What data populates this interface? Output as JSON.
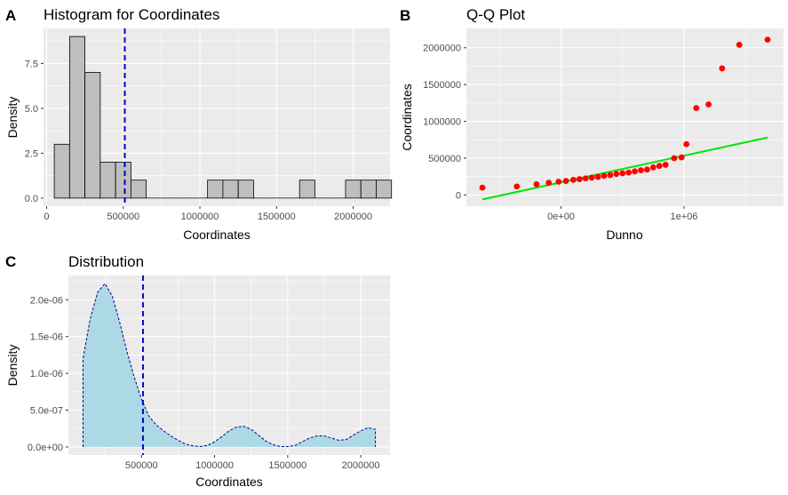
{
  "panels": {
    "A": {
      "label": "A",
      "title": "Histogram for Coordinates",
      "xlabel": "Coordinates",
      "ylabel": "Density",
      "x_ticks": [
        "0",
        "500000",
        "1000000",
        "1500000",
        "2000000"
      ],
      "y_ticks": [
        "0.0",
        "2.5",
        "5.0",
        "7.5"
      ]
    },
    "B": {
      "label": "B",
      "title": "Q-Q Plot",
      "xlabel": "Dunno",
      "ylabel": "Coordinates",
      "x_ticks": [
        "0e+00",
        "1e+06"
      ],
      "y_ticks": [
        "0",
        "500000",
        "1000000",
        "1500000",
        "2000000"
      ]
    },
    "C": {
      "label": "C",
      "title": "Distribution",
      "xlabel": "Coordinates",
      "ylabel": "Density",
      "x_ticks": [
        "500000",
        "1000000",
        "1500000",
        "2000000"
      ],
      "y_ticks": [
        "0.0e+00",
        "5.0e-07",
        "1.0e-06",
        "1.5e-06",
        "2.0e-06"
      ]
    }
  },
  "chart_data": [
    {
      "type": "bar",
      "panel": "A",
      "title": "Histogram for Coordinates",
      "xlabel": "Coordinates",
      "ylabel": "Density",
      "bin_width": 100000,
      "bin_start": 50000,
      "values": [
        3,
        9,
        7,
        2,
        2,
        1,
        0,
        0,
        0,
        0,
        1,
        1,
        1,
        0,
        0,
        0,
        1,
        0,
        0,
        1,
        1,
        1
      ],
      "vline": 510000,
      "xlim": [
        -20000,
        2240000
      ],
      "ylim": [
        -0.45,
        9.45
      ],
      "colors": {
        "fill": "#bebebe",
        "edge": "#000000",
        "vline": "#0000cd"
      }
    },
    {
      "type": "scatter",
      "panel": "B",
      "title": "Q-Q Plot",
      "xlabel": "Dunno",
      "ylabel": "Coordinates",
      "x": [
        -640000,
        -360000,
        -200000,
        -100000,
        -20000,
        40000,
        100000,
        150000,
        200000,
        250000,
        300000,
        350000,
        400000,
        450000,
        500000,
        550000,
        600000,
        650000,
        700000,
        750000,
        800000,
        850000,
        920000,
        980000,
        1020000,
        1100000,
        1200000,
        1310000,
        1450000,
        1680000
      ],
      "y": [
        100000,
        115000,
        145000,
        165000,
        180000,
        190000,
        205000,
        215000,
        225000,
        235000,
        245000,
        260000,
        270000,
        285000,
        295000,
        305000,
        320000,
        335000,
        345000,
        375000,
        395000,
        410000,
        500000,
        510000,
        690000,
        1180000,
        1230000,
        1720000,
        2040000,
        2110000
      ],
      "reference_line": {
        "x": [
          -640000,
          1680000
        ],
        "y": [
          -60000,
          780000
        ]
      },
      "xlim": [
        -770000,
        1810000
      ],
      "ylim": [
        -152500,
        2262500
      ],
      "colors": {
        "points": "#ff0000",
        "line": "#00e600"
      }
    },
    {
      "type": "area",
      "panel": "C",
      "title": "Distribution",
      "xlabel": "Coordinates",
      "ylabel": "Density",
      "x": [
        100000,
        150000,
        200000,
        250000,
        300000,
        350000,
        400000,
        450000,
        500000,
        550000,
        600000,
        650000,
        700000,
        750000,
        800000,
        850000,
        900000,
        950000,
        1000000,
        1050000,
        1100000,
        1150000,
        1200000,
        1250000,
        1300000,
        1350000,
        1400000,
        1450000,
        1500000,
        1550000,
        1600000,
        1650000,
        1700000,
        1750000,
        1800000,
        1850000,
        1900000,
        1950000,
        2000000,
        2050000,
        2100000
      ],
      "y": [
        1.2e-06,
        1.75e-06,
        2.1e-06,
        2.22e-06,
        2.05e-06,
        1.7e-06,
        1.3e-06,
        9.5e-07,
        6.5e-07,
        4.2e-07,
        3e-07,
        2.2e-07,
        1.5e-07,
        9e-08,
        4e-08,
        1.5e-08,
        5e-09,
        2e-08,
        7e-08,
        1.4e-07,
        2.2e-07,
        2.7e-07,
        2.8e-07,
        2.4e-07,
        1.6e-07,
        8e-08,
        3e-08,
        5e-09,
        5e-09,
        2e-08,
        7e-08,
        1.2e-07,
        1.5e-07,
        1.5e-07,
        1.2e-07,
        9e-08,
        1e-07,
        1.6e-07,
        2.2e-07,
        2.6e-07,
        2.4e-07
      ],
      "vline": 510000,
      "xlim": [
        0,
        2200000
      ],
      "ylim": [
        -1.1e-07,
        2.33e-06
      ],
      "colors": {
        "fill": "#add8e6",
        "outline": "#00008b",
        "vline": "#0000cd"
      }
    }
  ]
}
